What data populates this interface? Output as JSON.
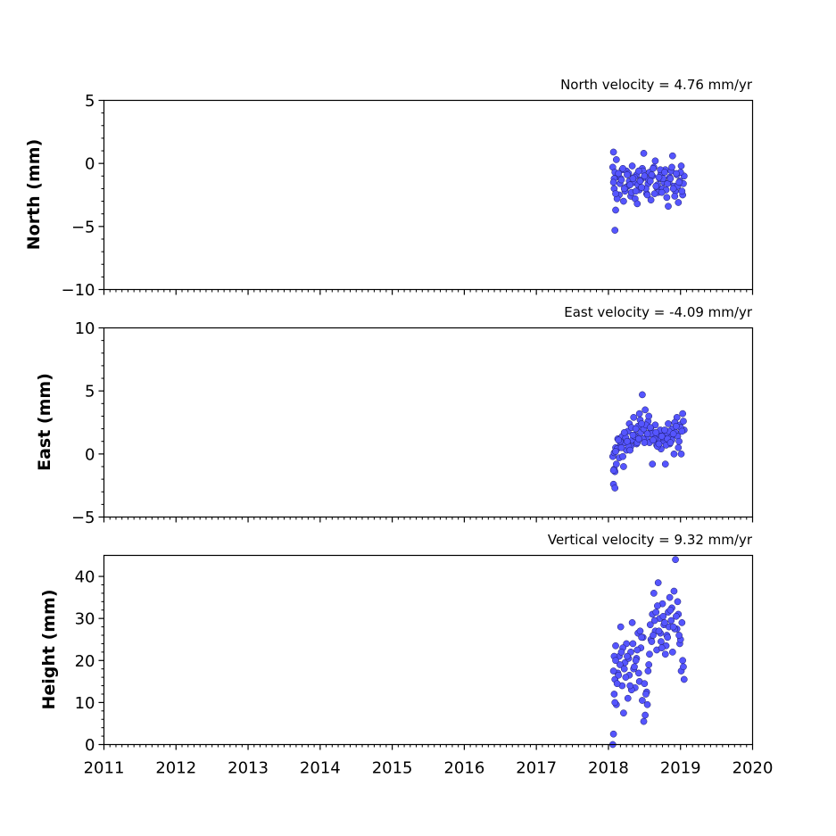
{
  "chart_data": [
    {
      "type": "scatter",
      "annotation": "North velocity = 4.76 mm/yr",
      "ylabel": "North (mm)",
      "ylim": [
        -10,
        5
      ],
      "yticks": [
        5,
        0,
        -5,
        -10
      ],
      "yticklabels": [
        "5",
        "0",
        "−5",
        "−10"
      ],
      "xlim": [
        2011,
        2020
      ],
      "xticklabels": [],
      "marker_color": "#5555ff",
      "series": [
        {
          "x": [
            2018.06,
            2018.07,
            2018.08,
            2018.09,
            2018.1,
            2018.11,
            2018.13,
            2018.15,
            2018.17,
            2018.19,
            2018.21,
            2018.23,
            2018.25,
            2018.27,
            2018.29,
            2018.31,
            2018.33,
            2018.35,
            2018.37,
            2018.39,
            2018.41,
            2018.43,
            2018.45,
            2018.47,
            2018.49,
            2018.51,
            2018.53,
            2018.55,
            2018.57,
            2018.59,
            2018.61,
            2018.63,
            2018.65,
            2018.67,
            2018.69,
            2018.71,
            2018.73,
            2018.75,
            2018.77,
            2018.79,
            2018.81,
            2018.83,
            2018.85,
            2018.87,
            2018.89,
            2018.91,
            2018.93,
            2018.95,
            2018.97,
            2018.99,
            2019.01,
            2019.03,
            2019.05,
            2018.08,
            2018.09,
            2018.12,
            2018.16,
            2018.2,
            2018.24,
            2018.28,
            2018.32,
            2018.36,
            2018.4,
            2018.44,
            2018.48,
            2018.52,
            2018.56,
            2018.6,
            2018.64,
            2018.68,
            2018.72,
            2018.76,
            2018.8,
            2018.84,
            2018.88,
            2018.92,
            2018.96,
            2019.0,
            2019.04,
            2018.07,
            2018.1,
            2018.14,
            2018.18,
            2018.22,
            2018.26,
            2018.3,
            2018.34,
            2018.38,
            2018.42,
            2018.46,
            2018.5,
            2018.54,
            2018.58,
            2018.62,
            2018.66,
            2018.7,
            2018.74,
            2018.78,
            2018.82,
            2018.86,
            2018.9,
            2018.94,
            2018.98,
            2019.02
          ],
          "y": [
            -0.3,
            0.9,
            -2.0,
            -5.3,
            -3.7,
            0.3,
            -1.0,
            -2.5,
            -1.2,
            -0.5,
            -3.0,
            -2.2,
            -0.6,
            -1.8,
            -1.4,
            -2.6,
            -0.2,
            -1.5,
            -2.8,
            -0.9,
            -1.7,
            -2.1,
            -1.3,
            -0.4,
            0.8,
            -1.1,
            -2.4,
            -1.6,
            -0.7,
            -2.9,
            -1.0,
            -0.3,
            0.2,
            -1.9,
            -2.3,
            -1.2,
            -0.8,
            -2.0,
            -1.5,
            -0.5,
            -2.7,
            -3.4,
            -1.1,
            -0.6,
            0.6,
            -1.8,
            -2.2,
            -0.9,
            -3.1,
            -1.4,
            -0.2,
            -2.5,
            -1.0,
            -1.2,
            -0.7,
            -2.8,
            -1.6,
            -0.4,
            -1.9,
            -0.8,
            -2.3,
            -1.1,
            -3.2,
            -1.4,
            -0.6,
            -2.0,
            -1.3,
            -0.9,
            -2.4,
            -1.7,
            -0.5,
            -1.2,
            -2.1,
            -1.5,
            -0.3,
            -2.6,
            -1.8,
            -0.7,
            -1.6,
            -1.5,
            -2.4,
            -0.8,
            -1.3,
            -2.0,
            -0.9,
            -1.7,
            -1.2,
            -2.2,
            -0.6,
            -1.9,
            -1.0,
            -2.5,
            -1.4,
            -0.4,
            -1.8,
            -1.1,
            -2.3,
            -0.7,
            -1.6,
            -1.2,
            -2.0,
            -0.8,
            -1.5,
            -2.2
          ]
        }
      ]
    },
    {
      "type": "scatter",
      "annotation": "East velocity = -4.09 mm/yr",
      "ylabel": "East (mm)",
      "ylim": [
        -5,
        10
      ],
      "yticks": [
        10,
        5,
        0,
        -5
      ],
      "yticklabels": [
        "10",
        "5",
        "0",
        "−5"
      ],
      "xlim": [
        2011,
        2020
      ],
      "xticklabels": [],
      "marker_color": "#5555ff",
      "series": [
        {
          "x": [
            2018.06,
            2018.07,
            2018.08,
            2018.09,
            2018.1,
            2018.11,
            2018.13,
            2018.15,
            2018.17,
            2018.19,
            2018.21,
            2018.23,
            2018.25,
            2018.27,
            2018.29,
            2018.31,
            2018.33,
            2018.35,
            2018.37,
            2018.39,
            2018.41,
            2018.43,
            2018.45,
            2018.47,
            2018.49,
            2018.51,
            2018.53,
            2018.55,
            2018.57,
            2018.59,
            2018.61,
            2018.63,
            2018.65,
            2018.67,
            2018.69,
            2018.71,
            2018.73,
            2018.75,
            2018.77,
            2018.79,
            2018.81,
            2018.83,
            2018.85,
            2018.87,
            2018.89,
            2018.91,
            2018.93,
            2018.95,
            2018.97,
            2018.99,
            2019.01,
            2019.03,
            2019.05,
            2018.08,
            2018.09,
            2018.12,
            2018.16,
            2018.2,
            2018.24,
            2018.28,
            2018.32,
            2018.36,
            2018.4,
            2018.44,
            2018.48,
            2018.52,
            2018.56,
            2018.6,
            2018.64,
            2018.68,
            2018.72,
            2018.76,
            2018.8,
            2018.84,
            2018.88,
            2018.92,
            2018.96,
            2019.0,
            2019.04,
            2018.07,
            2018.1,
            2018.14,
            2018.18,
            2018.22,
            2018.26,
            2018.3,
            2018.34,
            2018.38,
            2018.42,
            2018.46,
            2018.5,
            2018.54,
            2018.58,
            2018.62,
            2018.66,
            2018.7,
            2018.74,
            2018.78,
            2018.82,
            2018.86,
            2018.9,
            2018.94,
            2018.98,
            2019.02
          ],
          "y": [
            -0.2,
            -2.4,
            -1.2,
            -2.7,
            0.5,
            -0.8,
            1.2,
            -0.3,
            0.7,
            1.4,
            -1.0,
            0.9,
            0.3,
            1.8,
            2.4,
            0.6,
            1.1,
            2.9,
            1.5,
            0.8,
            2.2,
            3.2,
            1.7,
            4.7,
            2.0,
            3.5,
            1.3,
            2.6,
            0.9,
            1.9,
            -0.8,
            1.4,
            2.3,
            0.7,
            1.6,
            1.1,
            0.4,
            1.8,
            1.0,
            -0.8,
            1.5,
            2.4,
            0.8,
            1.3,
            2.0,
            0.0,
            1.7,
            2.9,
            0.5,
            2.3,
            0.0,
            3.2,
            1.9,
            0.1,
            -1.4,
            0.4,
            1.0,
            -0.2,
            1.3,
            0.6,
            2.1,
            1.4,
            0.9,
            2.7,
            1.2,
            2.3,
            3.0,
            1.6,
            1.2,
            0.6,
            1.9,
            1.3,
            0.7,
            1.8,
            1.1,
            2.5,
            1.4,
            2.1,
            2.6,
            -1.3,
            0.2,
            1.1,
            0.5,
            1.7,
            1.0,
            0.3,
            1.5,
            2.0,
            1.2,
            2.4,
            0.9,
            1.6,
            2.1,
            1.1,
            1.7,
            0.8,
            1.4,
            1.9,
            1.2,
            0.9,
            1.6,
            2.2,
            1.0,
            1.8
          ]
        }
      ]
    },
    {
      "type": "scatter",
      "annotation": "Vertical velocity = 9.32 mm/yr",
      "ylabel": "Height (mm)",
      "ylim": [
        0,
        45
      ],
      "yticks": [
        40,
        30,
        20,
        10,
        0
      ],
      "yticklabels": [
        "40",
        "30",
        "20",
        "10",
        "0"
      ],
      "xlim": [
        2011,
        2020
      ],
      "xticks": [
        2011,
        2012,
        2013,
        2014,
        2015,
        2016,
        2017,
        2018,
        2019,
        2020
      ],
      "xticklabels": [
        "2011",
        "2012",
        "2013",
        "2014",
        "2015",
        "2016",
        "2017",
        "2018",
        "2019",
        "2020"
      ],
      "marker_color": "#5555ff",
      "series": [
        {
          "x": [
            2018.06,
            2018.07,
            2018.08,
            2018.09,
            2018.1,
            2018.11,
            2018.13,
            2018.15,
            2018.17,
            2018.19,
            2018.21,
            2018.23,
            2018.25,
            2018.27,
            2018.29,
            2018.31,
            2018.33,
            2018.35,
            2018.37,
            2018.39,
            2018.41,
            2018.43,
            2018.45,
            2018.47,
            2018.49,
            2018.51,
            2018.53,
            2018.55,
            2018.57,
            2018.59,
            2018.61,
            2018.63,
            2018.65,
            2018.67,
            2018.69,
            2018.71,
            2018.73,
            2018.75,
            2018.77,
            2018.79,
            2018.81,
            2018.83,
            2018.85,
            2018.87,
            2018.89,
            2018.91,
            2018.93,
            2018.95,
            2018.97,
            2018.99,
            2019.01,
            2019.03,
            2019.05,
            2018.08,
            2018.09,
            2018.12,
            2018.16,
            2018.2,
            2018.24,
            2018.28,
            2018.32,
            2018.36,
            2018.4,
            2018.44,
            2018.48,
            2018.52,
            2018.56,
            2018.6,
            2018.64,
            2018.68,
            2018.72,
            2018.76,
            2018.8,
            2018.84,
            2018.88,
            2018.92,
            2018.96,
            2019.0,
            2019.04,
            2018.07,
            2018.1,
            2018.14,
            2018.18,
            2018.22,
            2018.26,
            2018.3,
            2018.34,
            2018.38,
            2018.42,
            2018.46,
            2018.5,
            2018.54,
            2018.58,
            2018.62,
            2018.66,
            2018.7,
            2018.74,
            2018.78,
            2018.82,
            2018.86,
            2018.9,
            2018.94,
            2018.98,
            2019.02
          ],
          "y": [
            0.0,
            2.5,
            12.0,
            15.5,
            23.5,
            9.5,
            17.0,
            21.0,
            28.0,
            14.0,
            7.5,
            19.5,
            24.0,
            11.0,
            16.5,
            22.0,
            29.0,
            18.0,
            13.5,
            20.5,
            26.5,
            15.0,
            23.0,
            10.5,
            5.5,
            7.0,
            12.5,
            17.5,
            21.5,
            25.0,
            31.0,
            36.0,
            27.0,
            22.5,
            38.5,
            30.0,
            24.5,
            33.5,
            28.5,
            21.5,
            26.0,
            31.5,
            35.0,
            29.5,
            22.0,
            36.5,
            44.0,
            27.5,
            31.0,
            24.0,
            17.5,
            20.0,
            15.5,
            21.0,
            10.0,
            14.5,
            19.0,
            23.0,
            16.0,
            20.5,
            13.0,
            18.5,
            22.5,
            27.0,
            25.5,
            12.0,
            19.0,
            24.5,
            29.5,
            33.0,
            26.5,
            30.5,
            23.5,
            28.0,
            32.5,
            27.5,
            34.0,
            25.0,
            18.5,
            17.5,
            20.0,
            16.5,
            22.0,
            18.0,
            21.0,
            14.0,
            24.0,
            20.0,
            17.0,
            25.5,
            14.5,
            9.5,
            28.5,
            26.0,
            31.5,
            27.0,
            23.0,
            29.0,
            25.5,
            32.0,
            28.0,
            30.5,
            26.0,
            29.0
          ]
        }
      ]
    }
  ]
}
